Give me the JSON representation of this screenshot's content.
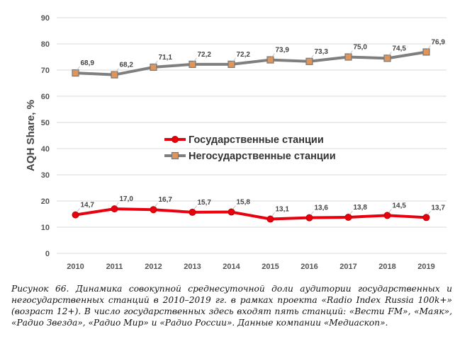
{
  "chart_data": {
    "type": "line",
    "ylabel": "AQH Share, %",
    "ylim": [
      0,
      90
    ],
    "yticks": [
      0,
      10,
      20,
      30,
      40,
      50,
      60,
      70,
      80,
      90
    ],
    "categories": [
      "2010",
      "2011",
      "2012",
      "2013",
      "2014",
      "2015",
      "2016",
      "2017",
      "2018",
      "2019"
    ],
    "grid": true,
    "legend_position": "center",
    "series": [
      {
        "name": "Государственные станции",
        "color": "#e8000e",
        "marker": "circle",
        "values": [
          14.7,
          17.0,
          16.7,
          15.7,
          15.8,
          13.1,
          13.6,
          13.8,
          14.5,
          13.7
        ],
        "labels": [
          "14,7",
          "17,0",
          "16,7",
          "15,7",
          "15,8",
          "13,1",
          "13,6",
          "13,8",
          "14,5",
          "13,7"
        ]
      },
      {
        "name": "Негосударственные станции",
        "color": "#7f7f7f",
        "marker_fill": "#e0955a",
        "marker": "square",
        "values": [
          68.9,
          68.2,
          71.1,
          72.2,
          72.2,
          73.9,
          73.3,
          75.0,
          74.5,
          76.9
        ],
        "labels": [
          "68,9",
          "68,2",
          "71,1",
          "72,2",
          "72,2",
          "73,9",
          "73,3",
          "75,0",
          "74,5",
          "76,9"
        ]
      }
    ]
  },
  "caption": {
    "label": "Рисунок 66.",
    "text": "Динамика совокупной среднесуточной доли аудитории государственных и негосударственных станций в 2010–2019 гг. в рамках проекта «Radio Index Russia 100k+» (возраст 12+). В число государственных здесь входят пять станций: «Вести FM», «Маяк», «Радио Звезда», «Радио Мир» и «Радио России». Данные компании «Медиаскоп»."
  }
}
